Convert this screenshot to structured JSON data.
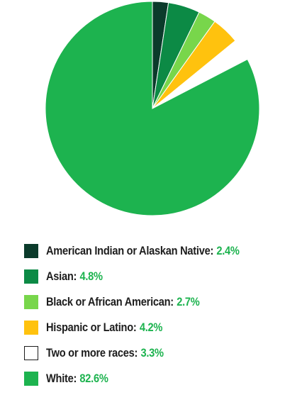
{
  "chart_data": {
    "type": "pie",
    "slices": [
      {
        "label": "American Indian or Alaskan Native",
        "value": 2.4,
        "value_label": "2.4%",
        "color": "#0b3b2b"
      },
      {
        "label": "Asian",
        "value": 4.8,
        "value_label": "4.8%",
        "color": "#0c8a45"
      },
      {
        "label": "Black or African American",
        "value": 2.7,
        "value_label": "2.7%",
        "color": "#78d64b"
      },
      {
        "label": "Hispanic or Latino",
        "value": 4.2,
        "value_label": "4.2%",
        "color": "#ffc20e"
      },
      {
        "label": "Two or more races",
        "value": 3.3,
        "value_label": "3.3%",
        "color": "#ffffff"
      },
      {
        "label": "White",
        "value": 82.6,
        "value_label": "82.6%",
        "color": "#1db34f"
      }
    ],
    "start_angle": "top, clockwise",
    "legend_position": "bottom",
    "value_color": "#1db34f",
    "separator": ":"
  }
}
